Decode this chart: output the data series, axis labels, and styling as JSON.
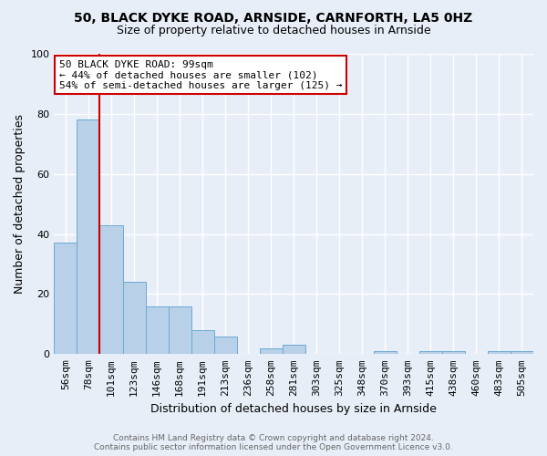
{
  "title1": "50, BLACK DYKE ROAD, ARNSIDE, CARNFORTH, LA5 0HZ",
  "title2": "Size of property relative to detached houses in Arnside",
  "xlabel": "Distribution of detached houses by size in Arnside",
  "ylabel": "Number of detached properties",
  "categories": [
    "56sqm",
    "78sqm",
    "101sqm",
    "123sqm",
    "146sqm",
    "168sqm",
    "191sqm",
    "213sqm",
    "236sqm",
    "258sqm",
    "281sqm",
    "303sqm",
    "325sqm",
    "348sqm",
    "370sqm",
    "393sqm",
    "415sqm",
    "438sqm",
    "460sqm",
    "483sqm",
    "505sqm"
  ],
  "values": [
    37,
    78,
    43,
    24,
    16,
    16,
    8,
    6,
    0,
    2,
    3,
    0,
    0,
    0,
    1,
    0,
    1,
    1,
    0,
    1,
    1
  ],
  "bar_color": "#b8d0e8",
  "bar_edge_color": "#6aaad4",
  "vline_color": "#cc0000",
  "vline_pos": 1.5,
  "annotation_text": "50 BLACK DYKE ROAD: 99sqm\n← 44% of detached houses are smaller (102)\n54% of semi-detached houses are larger (125) →",
  "annotation_box_color": "#ffffff",
  "annotation_box_edge_color": "#cc0000",
  "ylim": [
    0,
    100
  ],
  "footnote": "Contains HM Land Registry data © Crown copyright and database right 2024.\nContains public sector information licensed under the Open Government Licence v3.0.",
  "bg_color": "#e8eef8",
  "plot_bg_color": "#e8eef8",
  "grid_color": "#ffffff",
  "title1_fontsize": 10,
  "title2_fontsize": 9
}
